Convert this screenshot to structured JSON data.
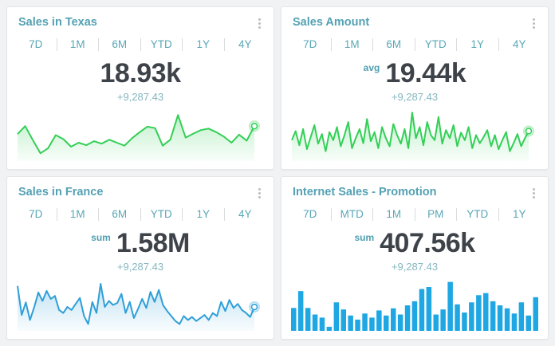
{
  "page": {
    "background": "#f0f2f4"
  },
  "colors": {
    "card_background": "#ffffff",
    "card_border": "#e4e6e8",
    "title_text": "#54a1b3",
    "tab_text": "#5aa7b6",
    "tab_separator": "#d9dbdd",
    "value_text": "#3d4349",
    "delta_text": "#85b7c0",
    "menu_dots": "#bcbcbc",
    "green_series": "#33cf56",
    "blue_line_series": "#2f9fd8",
    "blue_bar_series": "#1fa7e4"
  },
  "cards": [
    {
      "title": "Sales in Texas",
      "tabs": [
        "7D",
        "1M",
        "6M",
        "YTD",
        "1Y",
        "4Y"
      ],
      "prefix": "",
      "value": "18.93k",
      "delta": "+9,287.43",
      "chart_index": 0
    },
    {
      "title": "Sales Amount",
      "tabs": [
        "7D",
        "1M",
        "6M",
        "YTD",
        "1Y",
        "4Y"
      ],
      "prefix": "avg",
      "value": "19.44k",
      "delta": "+9,287.43",
      "chart_index": 1
    },
    {
      "title": "Sales in France",
      "tabs": [
        "7D",
        "1M",
        "6M",
        "YTD",
        "1Y",
        "4Y"
      ],
      "prefix": "sum",
      "value": "1.58M",
      "delta": "+9,287.43",
      "chart_index": 2
    },
    {
      "title": "Internet Sales - Promotion",
      "tabs": [
        "7D",
        "MTD",
        "1M",
        "PM",
        "YTD",
        "1Y"
      ],
      "prefix": "sum",
      "value": "407.56k",
      "delta": "+9,287.43",
      "chart_index": 3
    }
  ],
  "chart_data": [
    {
      "type": "line",
      "title": "Sales in Texas sparkline",
      "color": "#33cf56",
      "end_marker": true,
      "ylim": [
        0,
        100
      ],
      "values": [
        52,
        68,
        40,
        14,
        24,
        50,
        42,
        27,
        35,
        30,
        38,
        33,
        41,
        35,
        29,
        44,
        56,
        67,
        64,
        29,
        41,
        90,
        45,
        53,
        60,
        63,
        56,
        47,
        35,
        51,
        39,
        68
      ]
    },
    {
      "type": "line",
      "title": "Sales Amount sparkline",
      "color": "#33cf56",
      "end_marker": true,
      "ylim": [
        0,
        100
      ],
      "values": [
        40,
        58,
        30,
        62,
        22,
        46,
        70,
        33,
        52,
        18,
        56,
        40,
        66,
        28,
        50,
        76,
        24,
        44,
        62,
        34,
        82,
        38,
        56,
        24,
        66,
        44,
        28,
        72,
        50,
        33,
        62,
        24,
        95,
        44,
        66,
        30,
        76,
        50,
        40,
        86,
        33,
        60,
        44,
        70,
        28,
        55,
        40,
        66,
        24,
        50,
        34,
        46,
        60,
        28,
        50,
        22,
        40,
        56,
        18,
        34,
        52,
        28,
        44,
        58
      ]
    },
    {
      "type": "line",
      "title": "Sales in France sparkline",
      "color": "#2f9fd8",
      "end_marker": true,
      "ylim": [
        0,
        100
      ],
      "values": [
        88,
        30,
        55,
        20,
        45,
        75,
        58,
        78,
        62,
        68,
        40,
        34,
        46,
        40,
        52,
        64,
        28,
        12,
        56,
        34,
        92,
        46,
        58,
        50,
        54,
        72,
        34,
        56,
        24,
        42,
        62,
        44,
        76,
        56,
        80,
        50,
        38,
        28,
        18,
        12,
        28,
        20,
        26,
        18,
        24,
        30,
        20,
        34,
        28,
        56,
        38,
        60,
        44,
        52,
        40,
        34,
        26,
        46
      ]
    },
    {
      "type": "bar",
      "title": "Internet Sales - Promotion bars",
      "color": "#1fa7e4",
      "ylim": [
        0,
        100
      ],
      "values": [
        45,
        78,
        45,
        32,
        26,
        8,
        56,
        42,
        30,
        22,
        34,
        26,
        40,
        30,
        44,
        32,
        50,
        58,
        82,
        86,
        32,
        42,
        96,
        52,
        36,
        56,
        70,
        74,
        58,
        50,
        44,
        34,
        56,
        30,
        66
      ]
    }
  ]
}
